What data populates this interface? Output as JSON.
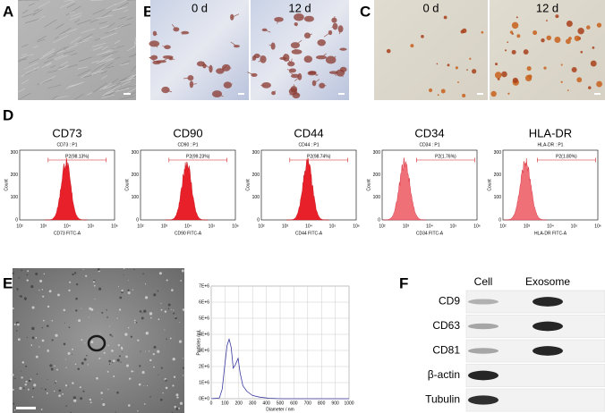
{
  "A": {
    "label": "A"
  },
  "B": {
    "label": "B",
    "times": [
      "0 d",
      "12 d"
    ]
  },
  "C": {
    "label": "C",
    "times": [
      "0 d",
      "12 d"
    ]
  },
  "D": {
    "label": "D",
    "y_label": "Count",
    "y_ticks": [
      "0",
      "100",
      "200",
      "300"
    ],
    "x_ticks": [
      "10²",
      "10³",
      "10⁴",
      "10⁵",
      "10⁶"
    ],
    "histograms": [
      {
        "title": "CD73",
        "subtitle": "CD73 : P1",
        "gate": "P2(98.13%)",
        "x_label": "CD73 FITC-A"
      },
      {
        "title": "CD90",
        "subtitle": "CD90 : P1",
        "gate": "P2(99.23%)",
        "x_label": "CD90 FITC-A"
      },
      {
        "title": "CD44",
        "subtitle": "CD44 : P1",
        "gate": "P2(98.74%)",
        "x_label": "CD44 FITC-A"
      },
      {
        "title": "CD34",
        "subtitle": "CD34 : P1",
        "gate": "P2(1.76%)",
        "x_label": "CD34 FITC-A"
      },
      {
        "title": "HLA-DR",
        "subtitle": "HLA-DR : P1",
        "gate": "P2(1.80%)",
        "x_label": "HLA-DR FITC-A"
      }
    ]
  },
  "E": {
    "label": "E",
    "plot": {
      "y_label": "Particles /mL",
      "y_ticks": [
        "0E+0",
        "1E+6",
        "2E+6",
        "3E+6",
        "4E+6",
        "5E+6",
        "6E+6",
        "7E+6"
      ],
      "x_label": "Diameter / nm",
      "x_ticks": [
        "0",
        "100",
        "200",
        "300",
        "400",
        "500",
        "600",
        "700",
        "800",
        "900",
        "1000"
      ]
    }
  },
  "F": {
    "label": "F",
    "columns": [
      "Cell",
      "Exosome"
    ],
    "rows": [
      "CD9",
      "CD63",
      "CD81",
      "β-actin",
      "Tubulin"
    ]
  }
}
